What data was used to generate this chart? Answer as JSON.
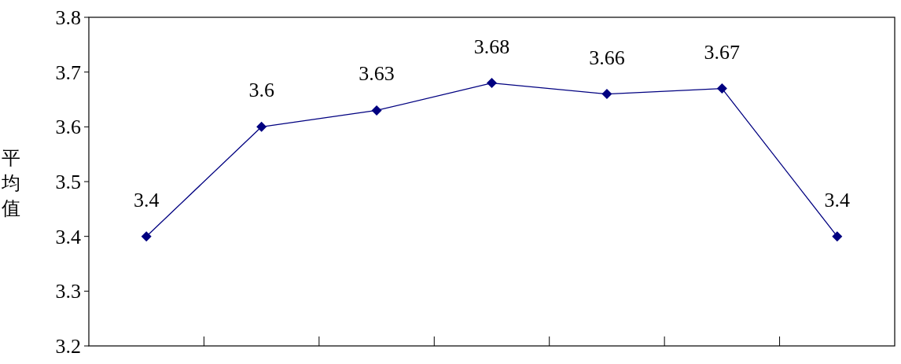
{
  "chart_data": {
    "type": "line",
    "ylabel": "平均值",
    "categories": [
      null,
      null,
      null,
      null,
      null,
      null,
      null
    ],
    "series": [
      {
        "color": "#000080",
        "values": [
          3.4,
          3.6,
          3.63,
          3.68,
          3.66,
          3.67,
          3.4
        ]
      }
    ],
    "ylim": [
      3.2,
      3.8
    ],
    "yticks": [
      3.2,
      3.3,
      3.4,
      3.5,
      3.6,
      3.7,
      3.8
    ],
    "marker": "diamond",
    "line_style": "solid",
    "data_labels": true,
    "grid": false
  }
}
